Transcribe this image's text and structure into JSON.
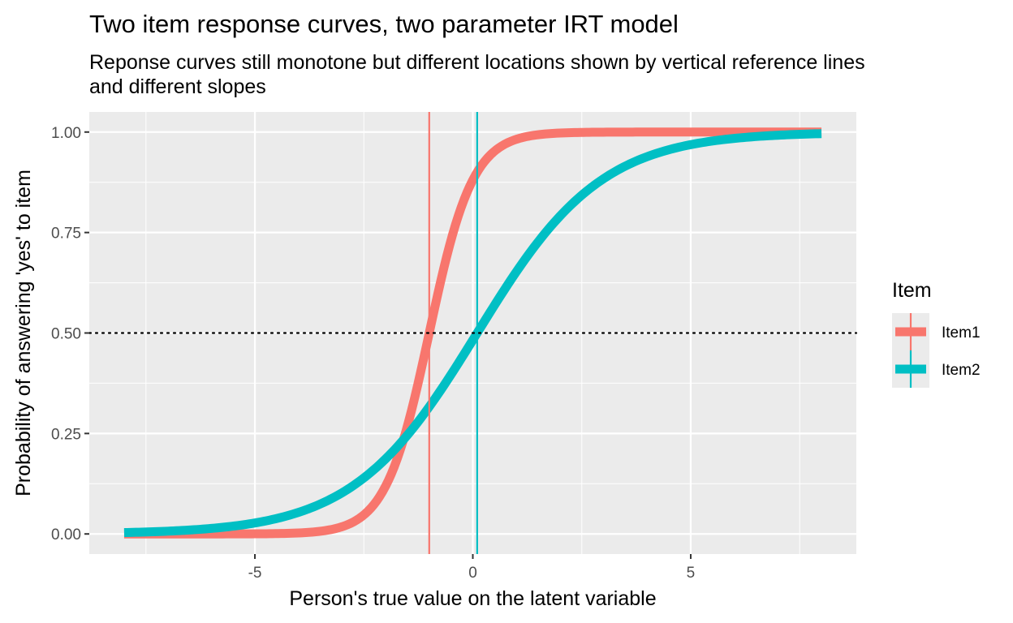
{
  "chart_data": {
    "type": "line",
    "title": "Two item response curves, two parameter IRT model",
    "subtitle_lines": [
      "Reponse curves still monotone but different locations shown by vertical reference lines",
      "and different slopes"
    ],
    "xlabel": "Person's true value on the latent variable",
    "ylabel": "Probability of answering 'yes' to item",
    "xlim": [
      -8.8,
      8.8
    ],
    "ylim": [
      -0.05,
      1.05
    ],
    "x_ticks": [
      -5,
      0,
      5
    ],
    "x_tick_labels": [
      "-5",
      "0",
      "5"
    ],
    "y_ticks": [
      0,
      0.25,
      0.5,
      0.75,
      1
    ],
    "y_tick_labels": [
      "0.00",
      "0.25",
      "0.50",
      "0.75",
      "1.00"
    ],
    "grid": true,
    "x_range": [
      -8,
      8
    ],
    "series": [
      {
        "name": "Item1",
        "color": "#F8766D",
        "location": -1,
        "slope": 2
      },
      {
        "name": "Item2",
        "color": "#00BFC4",
        "location": 0.1,
        "slope": 0.7
      }
    ],
    "reference_lines": {
      "vertical": [
        {
          "x": -1,
          "color": "#F8766D"
        },
        {
          "x": 0.1,
          "color": "#00BFC4"
        }
      ],
      "horizontal": [
        {
          "y": 0.5,
          "style": "dotted",
          "color": "#000000"
        }
      ]
    },
    "legend": {
      "title": "Item",
      "position": "right"
    }
  }
}
